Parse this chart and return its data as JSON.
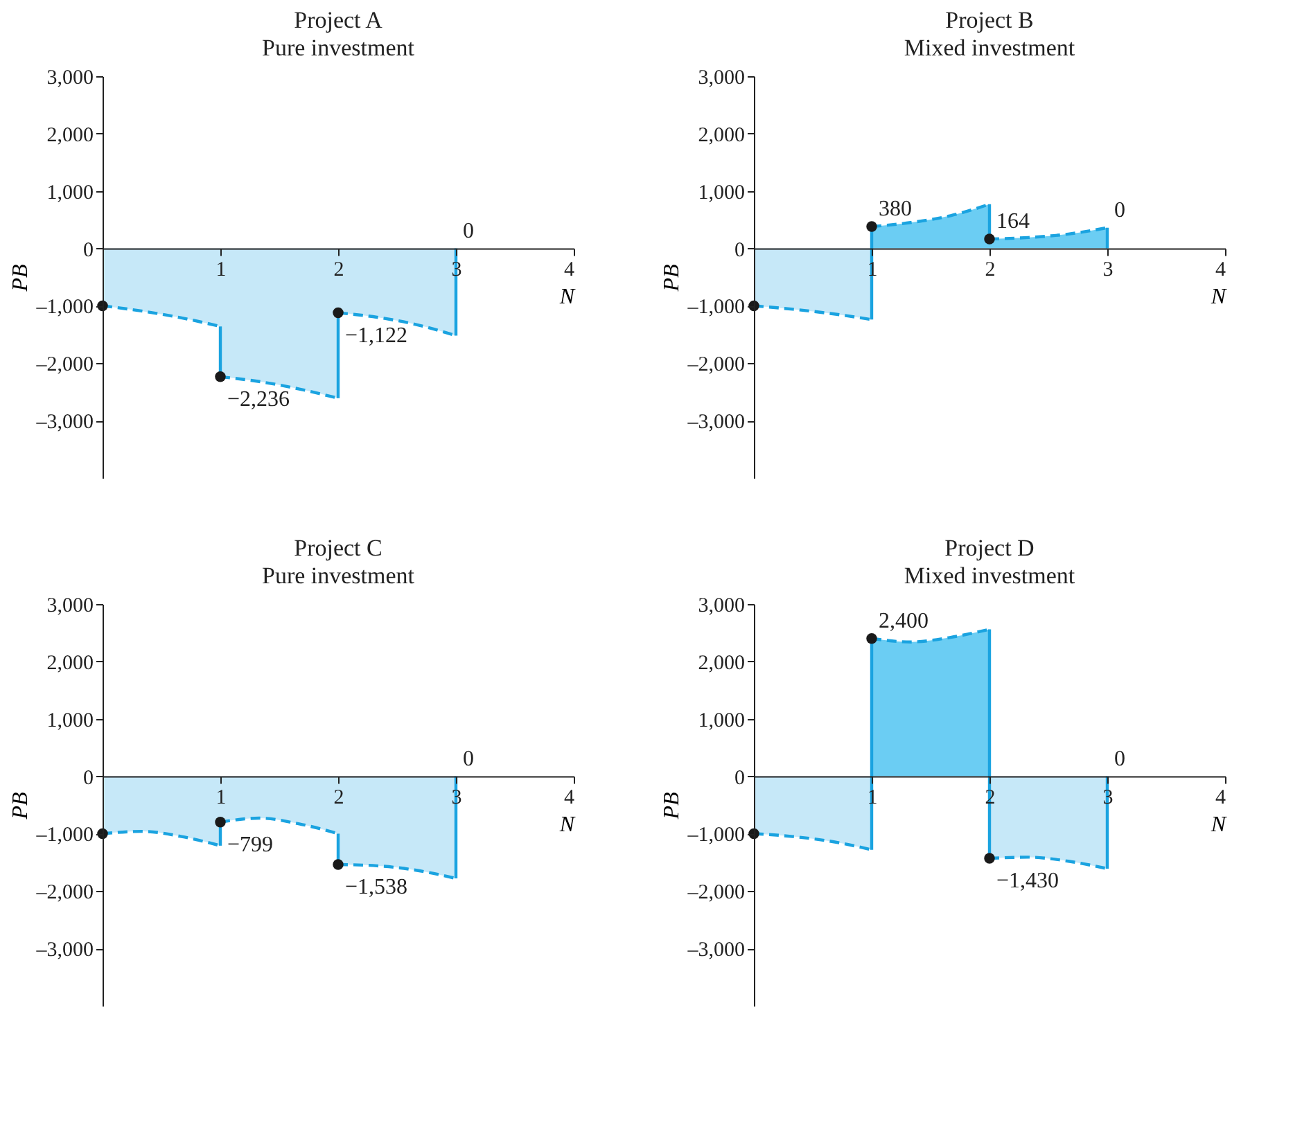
{
  "chart_data": [
    {
      "type": "area",
      "title": "Project A",
      "subtitle": "Pure investment",
      "xlabel": "N",
      "ylabel": "PB",
      "xlim": [
        0,
        4
      ],
      "xticks": [
        1,
        2,
        3,
        4
      ],
      "ylim": [
        -4000,
        3000
      ],
      "yticks": [
        {
          "value": -3000,
          "label": "–3,000"
        },
        {
          "value": -2000,
          "label": "–2,000"
        },
        {
          "value": -1000,
          "label": "–1,000"
        },
        0,
        {
          "value": 1000,
          "label": "1,000"
        },
        {
          "value": 2000,
          "label": "2,000"
        },
        {
          "value": 3000,
          "label": "3,000"
        }
      ],
      "grid": false,
      "series": [
        {
          "line_style": "dashed",
          "color": "#c6e8f8",
          "x": [
            0,
            0.33,
            0.67,
            1
          ],
          "values": [
            -1000,
            -1090,
            -1210,
            -1360
          ]
        },
        {
          "line_style": "dashed",
          "color": "#c6e8f8",
          "x": [
            1,
            1.33,
            1.67,
            2
          ],
          "values": [
            -2236,
            -2320,
            -2450,
            -2610
          ]
        },
        {
          "line_style": "dashed",
          "color": "#c6e8f8",
          "x": [
            2,
            2.33,
            2.67,
            3
          ],
          "values": [
            -1122,
            -1200,
            -1330,
            -1520
          ]
        },
        {
          "type": "line",
          "line_style": "solid",
          "color": "#1aa3e0",
          "x": [
            1,
            1
          ],
          "values": [
            -1360,
            -2236
          ]
        },
        {
          "type": "line",
          "line_style": "solid",
          "color": "#1aa3e0",
          "x": [
            2,
            2
          ],
          "values": [
            -2610,
            -1122
          ]
        },
        {
          "type": "line",
          "line_style": "solid",
          "color": "#1aa3e0",
          "x": [
            3,
            3
          ],
          "values": [
            -1520,
            0
          ]
        },
        {
          "type": "scatter",
          "marker": "circle",
          "color": "#1a1a1a",
          "x": [
            0,
            1,
            2
          ],
          "values": [
            -1000,
            -2236,
            -1122
          ]
        }
      ],
      "annotations": [
        {
          "text": "−2,236",
          "x": 1,
          "y": -2236
        },
        {
          "text": "−1,122",
          "x": 2,
          "y": -1122
        },
        {
          "text": "0",
          "x": 3,
          "y": 0
        }
      ]
    },
    {
      "type": "area",
      "title": "Project B",
      "subtitle": "Mixed investment",
      "xlabel": "N",
      "ylabel": "PB",
      "xlim": [
        0,
        4
      ],
      "xticks": [
        1,
        2,
        3,
        4
      ],
      "ylim": [
        -4000,
        3000
      ],
      "yticks": [
        {
          "value": -3000,
          "label": "–3,000"
        },
        {
          "value": -2000,
          "label": "–2,000"
        },
        {
          "value": -1000,
          "label": "–1,000"
        },
        0,
        {
          "value": 1000,
          "label": "1,000"
        },
        {
          "value": 2000,
          "label": "2,000"
        },
        {
          "value": 3000,
          "label": "3,000"
        }
      ],
      "grid": false,
      "series": [
        {
          "line_style": "dashed",
          "color": "#c6e8f8",
          "x": [
            0,
            0.33,
            0.67,
            1
          ],
          "values": [
            -1000,
            -1060,
            -1140,
            -1240
          ]
        },
        {
          "line_style": "dashed",
          "color": "#6bcdf3",
          "x": [
            1,
            1.33,
            1.67,
            2
          ],
          "values": [
            380,
            450,
            570,
            770
          ]
        },
        {
          "line_style": "dashed",
          "color": "#6bcdf3",
          "x": [
            2,
            2.33,
            2.67,
            3
          ],
          "values": [
            164,
            190,
            250,
            360
          ]
        },
        {
          "type": "line",
          "line_style": "solid",
          "color": "#1aa3e0",
          "x": [
            1,
            1
          ],
          "values": [
            -1240,
            380
          ]
        },
        {
          "type": "line",
          "line_style": "solid",
          "color": "#1aa3e0",
          "x": [
            2,
            2
          ],
          "values": [
            770,
            164
          ]
        },
        {
          "type": "line",
          "line_style": "solid",
          "color": "#1aa3e0",
          "x": [
            3,
            3
          ],
          "values": [
            360,
            0
          ]
        },
        {
          "type": "scatter",
          "marker": "circle",
          "color": "#1a1a1a",
          "x": [
            0,
            1,
            2
          ],
          "values": [
            -1000,
            380,
            164
          ]
        }
      ],
      "annotations": [
        {
          "text": "380",
          "x": 1,
          "y": 380
        },
        {
          "text": "164",
          "x": 2,
          "y": 164
        },
        {
          "text": "0",
          "x": 3,
          "y": 360
        }
      ]
    },
    {
      "type": "area",
      "title": "Project C",
      "subtitle": "Pure investment",
      "xlabel": "N",
      "ylabel": "PB",
      "xlim": [
        0,
        4
      ],
      "xticks": [
        1,
        2,
        3,
        4
      ],
      "ylim": [
        -4000,
        3000
      ],
      "yticks": [
        {
          "value": -3000,
          "label": "–3,000"
        },
        {
          "value": -2000,
          "label": "–2,000"
        },
        {
          "value": -1000,
          "label": "–1,000"
        },
        0,
        {
          "value": 1000,
          "label": "1,000"
        },
        {
          "value": 2000,
          "label": "2,000"
        },
        {
          "value": 3000,
          "label": "3,000"
        }
      ],
      "grid": false,
      "series": [
        {
          "line_style": "dashed",
          "color": "#c6e8f8",
          "x": [
            0,
            0.33,
            0.67,
            1
          ],
          "values": [
            -1000,
            -960,
            -1050,
            -1210
          ]
        },
        {
          "line_style": "dashed",
          "color": "#c6e8f8",
          "x": [
            1,
            1.33,
            1.67,
            2
          ],
          "values": [
            -799,
            -730,
            -830,
            -1000
          ]
        },
        {
          "line_style": "dashed",
          "color": "#c6e8f8",
          "x": [
            2,
            2.33,
            2.67,
            3
          ],
          "values": [
            -1538,
            -1560,
            -1640,
            -1780
          ]
        },
        {
          "type": "line",
          "line_style": "solid",
          "color": "#1aa3e0",
          "x": [
            1,
            1
          ],
          "values": [
            -1210,
            -799
          ]
        },
        {
          "type": "line",
          "line_style": "solid",
          "color": "#1aa3e0",
          "x": [
            2,
            2
          ],
          "values": [
            -1000,
            -1538
          ]
        },
        {
          "type": "line",
          "line_style": "solid",
          "color": "#1aa3e0",
          "x": [
            3,
            3
          ],
          "values": [
            -1780,
            0
          ]
        },
        {
          "type": "scatter",
          "marker": "circle",
          "color": "#1a1a1a",
          "x": [
            0,
            1,
            2
          ],
          "values": [
            -1000,
            -799,
            -1538
          ]
        }
      ],
      "annotations": [
        {
          "text": "−799",
          "x": 1,
          "y": -799
        },
        {
          "text": "−1,538",
          "x": 2,
          "y": -1538
        },
        {
          "text": "0",
          "x": 3,
          "y": 0
        }
      ]
    },
    {
      "type": "area",
      "title": "Project D",
      "subtitle": "Mixed investment",
      "xlabel": "N",
      "ylabel": "PB",
      "xlim": [
        0,
        4
      ],
      "xticks": [
        1,
        2,
        3,
        4
      ],
      "ylim": [
        -4000,
        3000
      ],
      "yticks": [
        {
          "value": -3000,
          "label": "–3,000"
        },
        {
          "value": -2000,
          "label": "–2,000"
        },
        {
          "value": -1000,
          "label": "–1,000"
        },
        0,
        {
          "value": 1000,
          "label": "1,000"
        },
        {
          "value": 2000,
          "label": "2,000"
        },
        {
          "value": 3000,
          "label": "3,000"
        }
      ],
      "grid": false,
      "series": [
        {
          "line_style": "dashed",
          "color": "#c6e8f8",
          "x": [
            0,
            0.33,
            0.67,
            1
          ],
          "values": [
            -1000,
            -1050,
            -1140,
            -1280
          ]
        },
        {
          "line_style": "dashed",
          "color": "#6bcdf3",
          "x": [
            1,
            1.33,
            1.67,
            2
          ],
          "values": [
            2400,
            2340,
            2420,
            2560
          ]
        },
        {
          "line_style": "dashed",
          "color": "#c6e8f8",
          "x": [
            2,
            2.33,
            2.67,
            3
          ],
          "values": [
            -1430,
            -1410,
            -1480,
            -1610
          ]
        },
        {
          "type": "line",
          "line_style": "solid",
          "color": "#1aa3e0",
          "x": [
            1,
            1
          ],
          "values": [
            -1280,
            2400
          ]
        },
        {
          "type": "line",
          "line_style": "solid",
          "color": "#1aa3e0",
          "x": [
            2,
            2
          ],
          "values": [
            2560,
            -1430
          ]
        },
        {
          "type": "line",
          "line_style": "solid",
          "color": "#1aa3e0",
          "x": [
            3,
            3
          ],
          "values": [
            -1610,
            0
          ]
        },
        {
          "type": "scatter",
          "marker": "circle",
          "color": "#1a1a1a",
          "x": [
            0,
            1,
            2
          ],
          "values": [
            -1000,
            2400,
            -1430
          ]
        }
      ],
      "annotations": [
        {
          "text": "2,400",
          "x": 1,
          "y": 2400
        },
        {
          "text": "−1,430",
          "x": 2,
          "y": -1430
        },
        {
          "text": "0",
          "x": 3,
          "y": 0
        }
      ]
    }
  ]
}
